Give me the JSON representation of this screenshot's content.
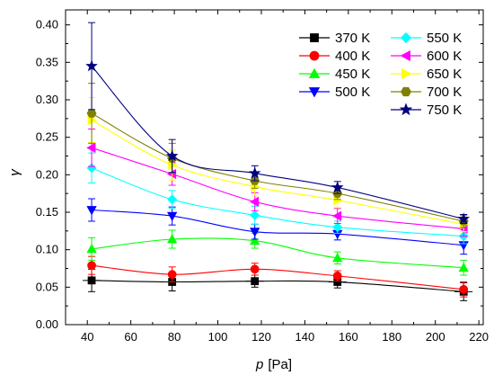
{
  "chart_data": {
    "type": "line",
    "xlabel_italic": "p",
    "xlabel_unit": "[Pa]",
    "ylabel": "γ",
    "xlim": [
      30,
      222
    ],
    "ylim": [
      0.0,
      0.42
    ],
    "x_ticks": [
      40,
      60,
      80,
      100,
      120,
      140,
      160,
      180,
      200,
      220
    ],
    "y_ticks": [
      "0.00",
      "0.05",
      "0.10",
      "0.15",
      "0.20",
      "0.25",
      "0.30",
      "0.35",
      "0.40"
    ],
    "legend_position": "top-right",
    "x": [
      42,
      79,
      117,
      155,
      213
    ],
    "series": [
      {
        "name": "370 K",
        "color": "#000000",
        "marker": "square",
        "values": [
          0.059,
          0.057,
          0.058,
          0.057,
          0.044
        ],
        "errors": [
          0.015,
          0.012,
          0.008,
          0.008,
          0.012
        ]
      },
      {
        "name": "400 K",
        "color": "#ff0000",
        "marker": "circle",
        "values": [
          0.079,
          0.067,
          0.074,
          0.065,
          0.047
        ],
        "errors": [
          0.012,
          0.01,
          0.008,
          0.007,
          0.01
        ]
      },
      {
        "name": "450 K",
        "color": "#00ff00",
        "marker": "triangle-up",
        "values": [
          0.101,
          0.114,
          0.112,
          0.089,
          0.076
        ],
        "errors": [
          0.015,
          0.012,
          0.01,
          0.008,
          0.01
        ]
      },
      {
        "name": "500 K",
        "color": "#0000ff",
        "marker": "triangle-down",
        "values": [
          0.153,
          0.145,
          0.124,
          0.121,
          0.106
        ],
        "errors": [
          0.015,
          0.012,
          0.01,
          0.008,
          0.012
        ]
      },
      {
        "name": "550 K",
        "color": "#00ffff",
        "marker": "diamond",
        "values": [
          0.209,
          0.167,
          0.146,
          0.13,
          0.118
        ],
        "errors": [
          0.02,
          0.012,
          0.012,
          0.008,
          0.01
        ]
      },
      {
        "name": "600 K",
        "color": "#ff00ff",
        "marker": "triangle-left",
        "values": [
          0.236,
          0.201,
          0.164,
          0.145,
          0.128
        ],
        "errors": [
          0.025,
          0.015,
          0.012,
          0.01,
          0.01
        ]
      },
      {
        "name": "650 K",
        "color": "#ffff00",
        "marker": "triangle-right",
        "values": [
          0.273,
          0.213,
          0.184,
          0.166,
          0.134
        ],
        "errors": [
          0.03,
          0.02,
          0.012,
          0.01,
          0.01
        ]
      },
      {
        "name": "700 K",
        "color": "#808000",
        "marker": "hexagon",
        "values": [
          0.282,
          0.222,
          0.192,
          0.175,
          0.138
        ],
        "errors": [
          0.04,
          0.02,
          0.01,
          0.008,
          0.008
        ]
      },
      {
        "name": "750 K",
        "color": "#000080",
        "marker": "star",
        "values": [
          0.345,
          0.225,
          0.202,
          0.183,
          0.141
        ],
        "errors": [
          0.058,
          0.022,
          0.01,
          0.008,
          0.006
        ]
      }
    ]
  }
}
